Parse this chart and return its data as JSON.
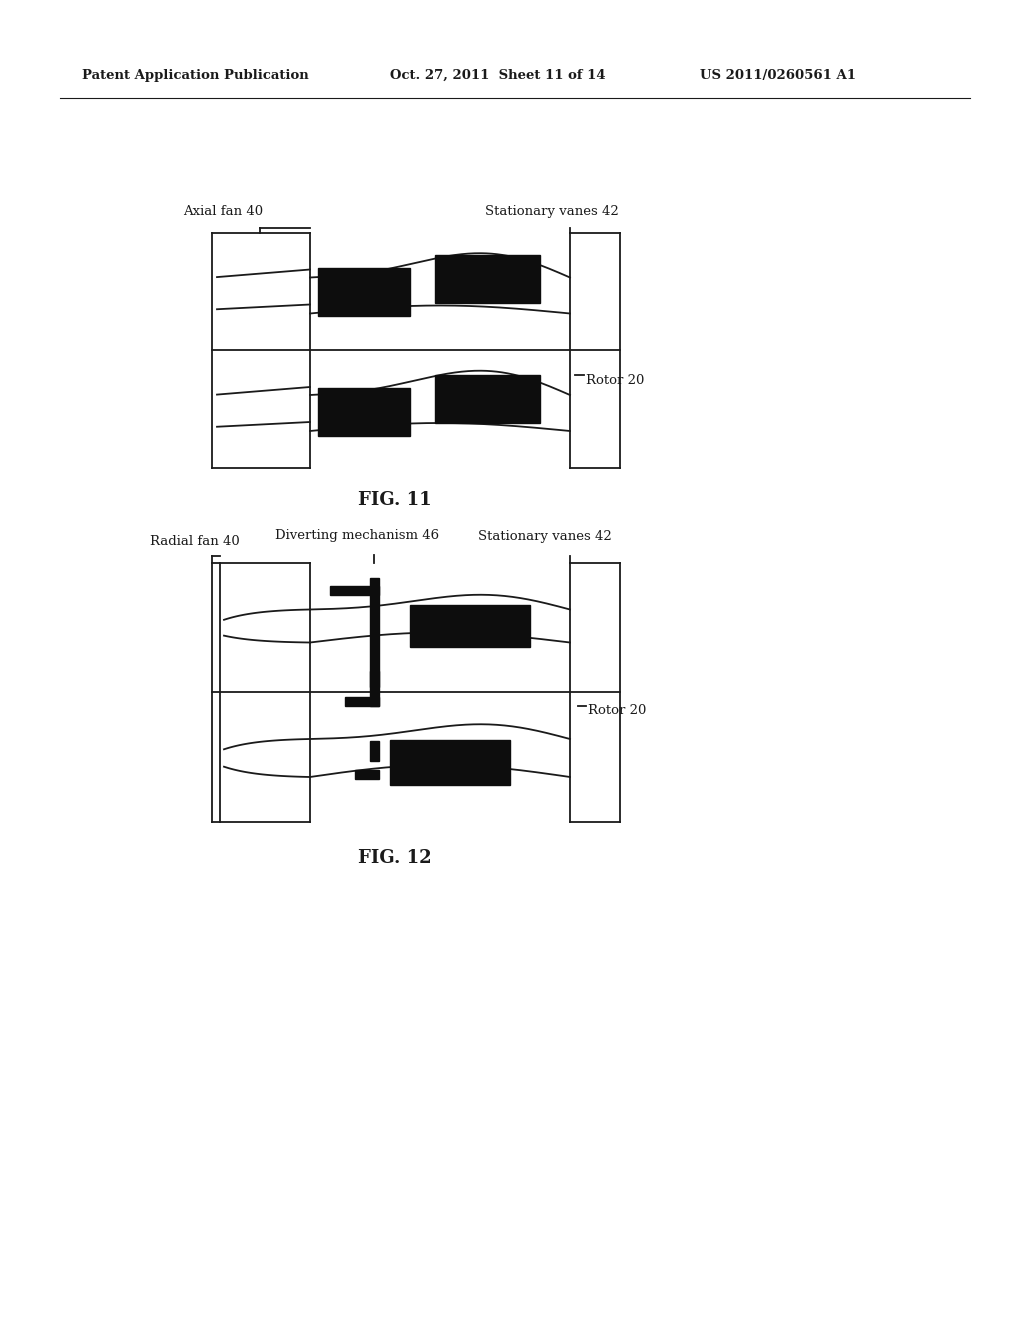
{
  "bg_color": "#ffffff",
  "header_left": "Patent Application Publication",
  "header_center": "Oct. 27, 2011  Sheet 11 of 14",
  "header_right": "US 2011/0260561 A1",
  "fig11_label": "FIG. 11",
  "fig12_label": "FIG. 12",
  "label_axial_fan": "Axial fan 40",
  "label_stationary_vanes_11": "Stationary vanes 42",
  "label_rotor_11": "Rotor 20",
  "label_radial_fan": "Radial fan 40",
  "label_diverting": "Diverting mechanism 46",
  "label_stationary_vanes_12": "Stationary vanes 42",
  "label_rotor_12": "Rotor 20",
  "lw": 1.3,
  "black": "#1a1a1a"
}
